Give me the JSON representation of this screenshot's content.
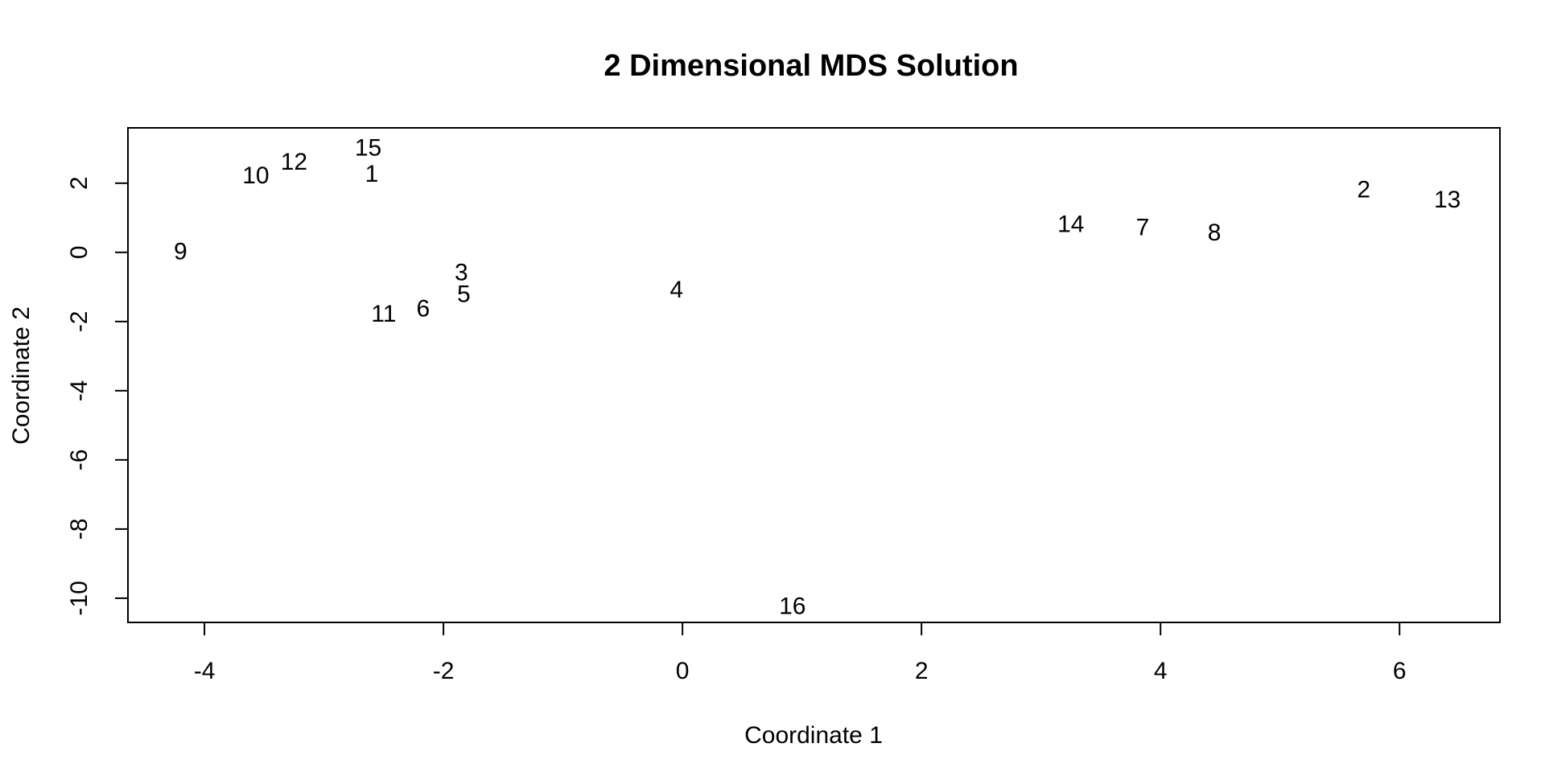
{
  "chart_data": {
    "type": "scatter",
    "title": "2 Dimensional MDS Solution",
    "xlabel": "Coordinate 1",
    "ylabel": "Coordinate 2",
    "xlim": [
      -4.64,
      6.84
    ],
    "ylim": [
      -10.7,
      3.6
    ],
    "x_ticks": [
      -4,
      -2,
      0,
      2,
      4,
      6
    ],
    "x_tick_labels": [
      "-4",
      "-2",
      "0",
      "2",
      "4",
      "6"
    ],
    "y_ticks": [
      -10,
      -8,
      -6,
      -4,
      -2,
      0,
      2
    ],
    "y_tick_labels": [
      "-10",
      "-8",
      "-6",
      "-4",
      "-2",
      "0",
      "2"
    ],
    "grid": false,
    "legend": "none",
    "points": [
      {
        "label": "1",
        "x": -2.6,
        "y": 2.3
      },
      {
        "label": "2",
        "x": 5.7,
        "y": 1.85
      },
      {
        "label": "3",
        "x": -1.85,
        "y": -0.55
      },
      {
        "label": "4",
        "x": -0.05,
        "y": -1.05
      },
      {
        "label": "5",
        "x": -1.83,
        "y": -1.18
      },
      {
        "label": "6",
        "x": -2.17,
        "y": -1.6
      },
      {
        "label": "7",
        "x": 3.85,
        "y": 0.75
      },
      {
        "label": "8",
        "x": 4.45,
        "y": 0.6
      },
      {
        "label": "9",
        "x": -4.2,
        "y": 0.05
      },
      {
        "label": "10",
        "x": -3.57,
        "y": 2.25
      },
      {
        "label": "11",
        "x": -2.5,
        "y": -1.75
      },
      {
        "label": "12",
        "x": -3.25,
        "y": 2.65
      },
      {
        "label": "13",
        "x": 6.4,
        "y": 1.55
      },
      {
        "label": "14",
        "x": 3.25,
        "y": 0.85
      },
      {
        "label": "15",
        "x": -2.63,
        "y": 3.05
      },
      {
        "label": "16",
        "x": 0.92,
        "y": -10.2
      }
    ]
  }
}
